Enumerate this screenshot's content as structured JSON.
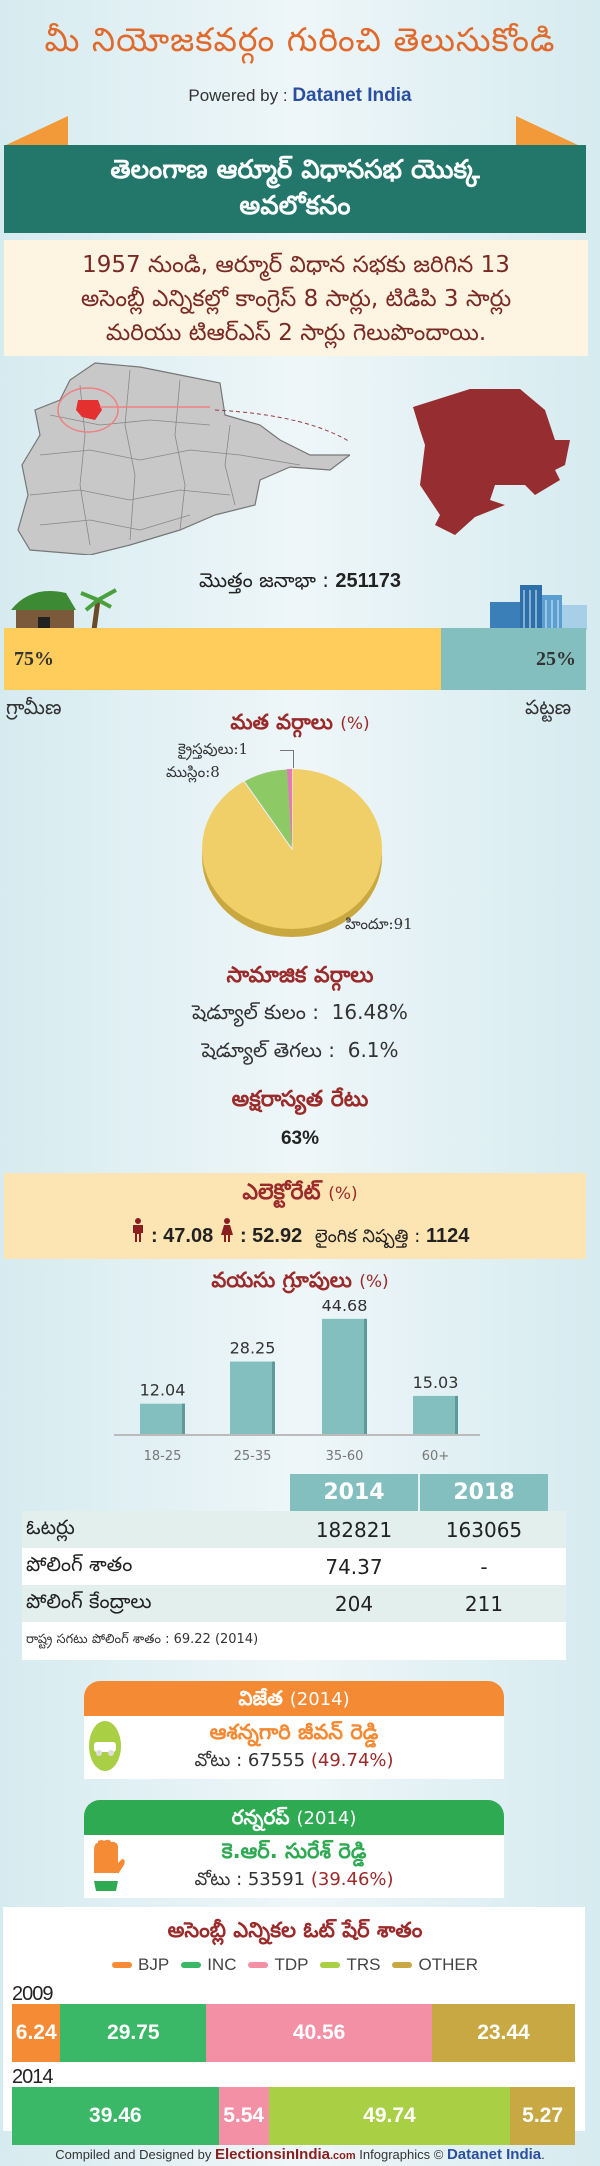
{
  "header": {
    "title": "మీ నియోజకవర్గం గురించి తెలుసుకోండి",
    "powered_by_label": "Powered by : ",
    "powered_by_brand": "Datanet India"
  },
  "banner": {
    "line1": "తెలంగాణ ఆర్మూర్ విధానసభ యొక్క",
    "line2": "అవలోకనం"
  },
  "intro": {
    "line1": "1957 నుండి, ఆర్మూర్ విధాన సభకు జరిగిన 13",
    "line2": "అసెంబ్లీ ఎన్నికల్లో కాంగ్రెస్ 8 సార్లు, టిడిపి 3 సార్లు",
    "line3": "మరియు టిఆర్ఎస్ 2 సార్లు గెలుపొందాయి."
  },
  "population": {
    "label": "మొత్తం జనాభా : ",
    "total": "251173",
    "rural_pct": "75%",
    "urban_pct": "25%",
    "rural_label": "గ్రామీణ",
    "urban_label": "పట్టణ",
    "rural_value": 75,
    "urban_value": 25
  },
  "religion": {
    "title": "మత వర్గాలు",
    "unit": "(%)",
    "labels": {
      "christian": "క్రైస్తవులు:1",
      "muslim": "ముస్లిం:8",
      "hindu": "హిందూ:91"
    }
  },
  "social": {
    "title": "సామాజిక వర్గాలు",
    "sc_label": "షెడ్యూల్ కులం :",
    "sc_value": "16.48%",
    "st_label": "షెడ్యూల్ తెగలు :",
    "st_value": "6.1%"
  },
  "literacy": {
    "title": "అక్షరాస్యత రేటు",
    "value": "63%"
  },
  "electorate": {
    "title": "ఎలెక్టోరేట్",
    "unit": "(%)",
    "male": ": 47.08",
    "female": ": 52.92",
    "sex_ratio_label": "లైంగిక నిష్పత్తి : ",
    "sex_ratio": "1124"
  },
  "age_groups": {
    "title": "వయసు గ్రూపులు",
    "unit": "(%)"
  },
  "table": {
    "headers": [
      "",
      "2014",
      "2018"
    ],
    "rows": [
      {
        "label": "ఓటర్లు",
        "v2014": "182821",
        "v2018": "163065"
      },
      {
        "label": "పోలింగ్ శాతం",
        "v2014": "74.37",
        "v2018": "-"
      },
      {
        "label": "పోలింగ్ కేంద్రాలు",
        "v2014": "204",
        "v2018": "211"
      }
    ],
    "note": "రాష్ట్ర సగటు పోలింగ్ శాతం : 69.22 (2014)"
  },
  "winner": {
    "title": "విజేత",
    "year": "(2014)",
    "name": "ఆశన్నగారి జీవన్ రెడ్డి",
    "votes_label": "వోటు : ",
    "votes": "67555",
    "votes_pct": "(49.74%)",
    "color": "#f48a34"
  },
  "runner_up": {
    "title": "రన్నరప్",
    "year": "(2014)",
    "name": "కె.ఆర్. సురేశ్ రెడ్డి",
    "votes_label": "వోటు : ",
    "votes": "53591",
    "votes_pct": "(39.46%)",
    "color": "#2eaa52"
  },
  "vote_share": {
    "title": "అసెంబ్లీ ఎన్నికల ఓట్ షేర్ శాతం",
    "legend": [
      {
        "name": "BJP",
        "color": "#f58b35"
      },
      {
        "name": "INC",
        "color": "#3bb768"
      },
      {
        "name": "TDP",
        "color": "#f390a6"
      },
      {
        "name": "TRS",
        "color": "#a9cf45"
      },
      {
        "name": "OTHER",
        "color": "#c8a843"
      }
    ],
    "years": [
      {
        "year": "2009",
        "segments": [
          {
            "party": "BJP",
            "value": "6.24"
          },
          {
            "party": "INC",
            "value": "29.75"
          },
          {
            "party": "TDP",
            "value": "40.56"
          },
          {
            "party": "OTHER",
            "value": "23.44"
          }
        ]
      },
      {
        "year": "2014",
        "segments": [
          {
            "party": "INC",
            "value": "39.46"
          },
          {
            "party": "TDP",
            "value": "5.54"
          },
          {
            "party": "TRS",
            "value": "49.74"
          },
          {
            "party": "OTHER",
            "value": "5.27"
          }
        ]
      }
    ]
  },
  "footer": {
    "prefix": "Compiled and Designed by ",
    "eii": "ElectionsinIndia",
    "eii_com": ".com",
    "middle": " Infographics © ",
    "dni": "Datanet India",
    "suffix": "."
  },
  "chart_data": [
    {
      "type": "pie",
      "title": "మత వర్గాలు (%)",
      "categories": [
        "హిందూ",
        "ముస్లిం",
        "క్రైస్తవులు"
      ],
      "values": [
        91,
        8,
        1
      ],
      "colors": [
        "#f0cf68",
        "#8dc965",
        "#e27bb5"
      ]
    },
    {
      "type": "bar",
      "title": "వయసు గ్రూపులు (%)",
      "categories": [
        "18-25",
        "25-35",
        "35-60",
        "60+"
      ],
      "values": [
        12.04,
        28.25,
        44.68,
        15.03
      ],
      "xlabel": "",
      "ylabel": "",
      "color": "#84bfc0"
    },
    {
      "type": "bar",
      "title": "అసెంబ్లీ ఎన్నికల ఓట్ షేర్ శాతం",
      "stacked": true,
      "orientation": "horizontal",
      "categories": [
        "2009",
        "2014"
      ],
      "series": [
        {
          "name": "BJP",
          "values": [
            6.24,
            0
          ]
        },
        {
          "name": "INC",
          "values": [
            29.75,
            39.46
          ]
        },
        {
          "name": "TDP",
          "values": [
            40.56,
            5.54
          ]
        },
        {
          "name": "TRS",
          "values": [
            0,
            49.74
          ]
        },
        {
          "name": "OTHER",
          "values": [
            23.44,
            5.27
          ]
        }
      ],
      "legend_position": "top"
    },
    {
      "type": "bar",
      "title": "Population (Rural vs Urban)",
      "orientation": "horizontal",
      "stacked": true,
      "categories": [
        "గ్రామీణ",
        "పట్టణ"
      ],
      "values": [
        75,
        25
      ]
    }
  ]
}
